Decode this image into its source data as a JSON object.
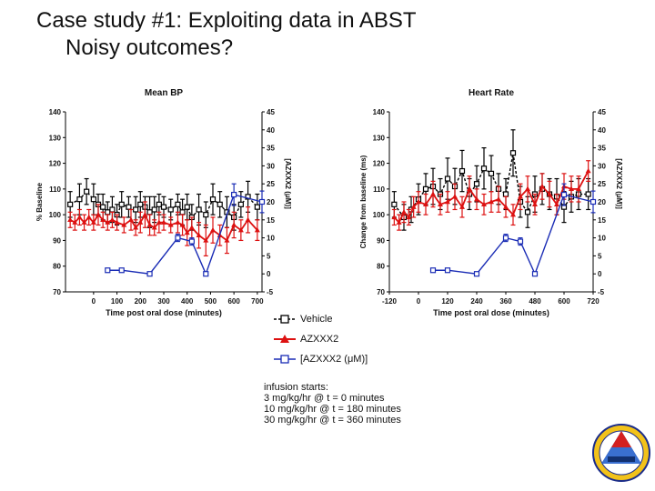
{
  "slide": {
    "title": "Case study #1:  Exploiting data in ABST",
    "subtitle": "Noisy outcomes?"
  },
  "legend": {
    "items": [
      {
        "label": "Vehicle",
        "color": "#000000",
        "marker": "square-open",
        "dashed": true
      },
      {
        "label": "AZXXX2",
        "color": "#dd1111",
        "marker": "triangle",
        "dashed": false
      },
      {
        "label": "[AZXXX2 (μM)]",
        "color": "#1a2cb5",
        "marker": "square-open",
        "dashed": false
      }
    ]
  },
  "infusion": {
    "heading": "infusion starts:",
    "lines": [
      "3 mg/kg/hr @ t = 0 minutes",
      "10 mg/kg/hr @ t = 180 minutes",
      "30 mg/kg/hr @ t = 360 minutes"
    ]
  },
  "colors": {
    "vehicle": "#000000",
    "azxxx2": "#dd1111",
    "conc": "#1a2cb5"
  },
  "chart_data": [
    {
      "type": "line",
      "title": "Mean BP",
      "xlabel": "Time post oral dose (minutes)",
      "ylabel": "% Baseline",
      "y2label": "[AZXXX2 (μM)]",
      "xlim": [
        -120,
        720
      ],
      "ylim": [
        70,
        140
      ],
      "y2lim": [
        -5,
        45
      ],
      "xticks": [
        "0",
        "100",
        "200",
        "300",
        "400",
        "500",
        "600",
        "700"
      ],
      "xtick_values": [
        0,
        100,
        200,
        300,
        400,
        500,
        600,
        700
      ],
      "yticks": [
        "70",
        "80",
        "90",
        "100",
        "110",
        "120",
        "130",
        "140"
      ],
      "y2ticks": [
        "-5",
        "0",
        "5",
        "10",
        "15",
        "20",
        "25",
        "30",
        "35",
        "40",
        "45"
      ],
      "series": [
        {
          "name": "Vehicle",
          "axis": "left",
          "color": "#000000",
          "dashed": true,
          "marker": "square-open",
          "x": [
            -100,
            -60,
            -30,
            0,
            20,
            40,
            60,
            80,
            100,
            120,
            150,
            180,
            200,
            220,
            240,
            260,
            280,
            300,
            330,
            360,
            380,
            400,
            420,
            450,
            480,
            510,
            540,
            570,
            600,
            630,
            660,
            700
          ],
          "y": [
            104,
            106,
            109,
            106,
            104,
            103,
            101,
            102,
            100,
            104,
            103,
            102,
            104,
            103,
            101,
            102,
            104,
            103,
            102,
            104,
            101,
            103,
            99,
            102,
            100,
            106,
            104,
            101,
            99,
            104,
            107,
            103
          ],
          "err": [
            5,
            6,
            5,
            6,
            4,
            5,
            4,
            5,
            4,
            5,
            4,
            5,
            5,
            4,
            6,
            5,
            4,
            4,
            4,
            4,
            5,
            5,
            5,
            6,
            5,
            6,
            5,
            6,
            5,
            5,
            6,
            5
          ]
        },
        {
          "name": "AZXXX2",
          "axis": "left",
          "color": "#dd1111",
          "dashed": false,
          "marker": "triangle",
          "x": [
            -100,
            -80,
            -60,
            -40,
            -20,
            0,
            20,
            40,
            60,
            80,
            100,
            130,
            160,
            180,
            200,
            220,
            240,
            260,
            280,
            300,
            330,
            360,
            380,
            400,
            420,
            450,
            480,
            510,
            540,
            570,
            600,
            630,
            660,
            700
          ],
          "y": [
            98,
            97,
            99,
            97,
            99,
            97,
            100,
            98,
            97,
            98,
            97,
            96,
            98,
            95,
            97,
            100,
            96,
            95,
            97,
            97,
            96,
            97,
            96,
            93,
            95,
            92,
            90,
            94,
            92,
            90,
            96,
            94,
            98,
            94
          ],
          "err": [
            3,
            3,
            3,
            3,
            3,
            3,
            4,
            3,
            3,
            3,
            3,
            3,
            4,
            3,
            4,
            5,
            4,
            3,
            4,
            3,
            3,
            4,
            4,
            5,
            4,
            5,
            6,
            5,
            4,
            5,
            5,
            4,
            5,
            4
          ]
        },
        {
          "name": "[AZXXX2 (μM)]",
          "axis": "right",
          "color": "#1a2cb5",
          "dashed": false,
          "marker": "square-open",
          "x": [
            60,
            120,
            240,
            360,
            420,
            480,
            600,
            720
          ],
          "y": [
            1,
            1,
            0,
            10,
            9,
            0,
            22,
            20
          ],
          "err": [
            0,
            0,
            0,
            1,
            1,
            0,
            3,
            3
          ]
        }
      ]
    },
    {
      "type": "line",
      "title": "Heart Rate",
      "xlabel": "Time post oral dose (minutes)",
      "ylabel": "Change from baseline (ms)",
      "y2label": "[AZXXX2 (μM)]",
      "xlim": [
        -120,
        720
      ],
      "ylim": [
        70,
        140
      ],
      "y2lim": [
        -5,
        45
      ],
      "xticks": [
        "-120",
        "0",
        "120",
        "240",
        "360",
        "480",
        "600",
        "720"
      ],
      "xtick_values": [
        -120,
        0,
        120,
        240,
        360,
        480,
        600,
        720
      ],
      "yticks": [
        "70",
        "80",
        "90",
        "100",
        "110",
        "120",
        "130",
        "140"
      ],
      "y2ticks": [
        "-5",
        "0",
        "5",
        "10",
        "15",
        "20",
        "25",
        "30",
        "35",
        "40",
        "45"
      ],
      "series": [
        {
          "name": "Vehicle",
          "axis": "left",
          "color": "#000000",
          "dashed": true,
          "marker": "square-open",
          "x": [
            -100,
            -60,
            -30,
            0,
            30,
            60,
            90,
            120,
            150,
            180,
            210,
            240,
            270,
            300,
            330,
            360,
            390,
            420,
            450,
            480,
            510,
            540,
            570,
            600,
            630,
            660,
            700
          ],
          "y": [
            104,
            99,
            102,
            106,
            110,
            111,
            108,
            114,
            111,
            117,
            108,
            112,
            118,
            116,
            110,
            108,
            124,
            105,
            101,
            108,
            110,
            108,
            107,
            103,
            107,
            108,
            108
          ],
          "err": [
            5,
            5,
            5,
            6,
            6,
            7,
            6,
            8,
            7,
            8,
            6,
            7,
            8,
            7,
            6,
            6,
            9,
            6,
            6,
            7,
            6,
            6,
            7,
            6,
            6,
            6,
            6
          ]
        },
        {
          "name": "AZXXX2",
          "axis": "left",
          "color": "#dd1111",
          "dashed": false,
          "marker": "triangle",
          "x": [
            -100,
            -80,
            -60,
            -40,
            -20,
            0,
            30,
            60,
            90,
            120,
            150,
            180,
            210,
            240,
            270,
            300,
            330,
            360,
            390,
            420,
            450,
            480,
            510,
            540,
            570,
            600,
            630,
            660,
            700
          ],
          "y": [
            99,
            97,
            101,
            99,
            103,
            105,
            104,
            108,
            104,
            105,
            107,
            103,
            110,
            106,
            104,
            105,
            106,
            103,
            100,
            107,
            110,
            104,
            111,
            108,
            104,
            111,
            110,
            110,
            117
          ],
          "err": [
            3,
            3,
            4,
            3,
            4,
            4,
            4,
            5,
            4,
            4,
            5,
            4,
            5,
            4,
            4,
            4,
            5,
            4,
            4,
            5,
            5,
            4,
            5,
            5,
            4,
            5,
            5,
            5,
            4
          ]
        },
        {
          "name": "[AZXXX2 (μM)]",
          "axis": "right",
          "color": "#1a2cb5",
          "dashed": false,
          "marker": "square-open",
          "x": [
            60,
            120,
            240,
            360,
            420,
            480,
            600,
            720
          ],
          "y": [
            1,
            1,
            0,
            10,
            9,
            0,
            22,
            20
          ],
          "err": [
            0,
            0,
            0,
            1,
            1,
            0,
            3,
            3
          ]
        }
      ]
    }
  ]
}
